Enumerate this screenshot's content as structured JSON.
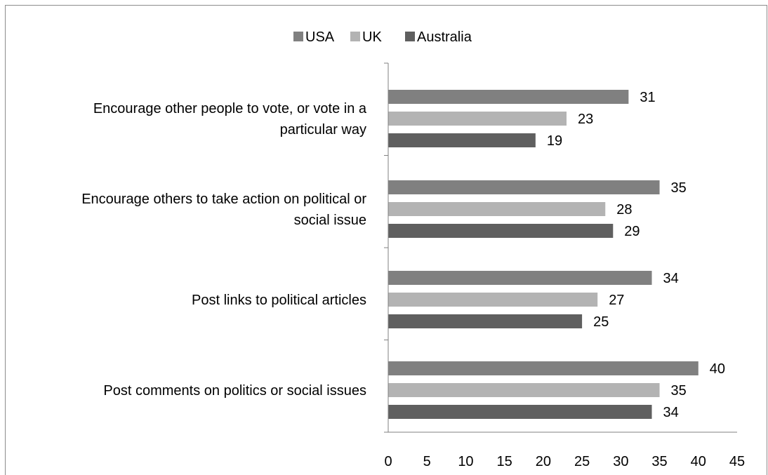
{
  "chart_data": {
    "type": "bar",
    "orientation": "horizontal",
    "categories": [
      [
        "Encourage other people to vote, or vote in a",
        "particular way"
      ],
      [
        "Encourage others to take action on political or",
        "social issue"
      ],
      [
        "Post links to political articles"
      ],
      [
        "Post comments on politics or social issues"
      ]
    ],
    "series": [
      {
        "name": "USA",
        "color": "#808080",
        "values": [
          31,
          35,
          34,
          40
        ]
      },
      {
        "name": "UK",
        "color": "#b3b3b3",
        "values": [
          23,
          28,
          27,
          35
        ]
      },
      {
        "name": "Australia",
        "color": "#5f5f5f",
        "values": [
          19,
          29,
          25,
          34
        ]
      }
    ],
    "xlim": [
      0,
      45
    ],
    "xticks": [
      0,
      5,
      10,
      15,
      20,
      25,
      30,
      35,
      40,
      45
    ],
    "legend_position": "top",
    "grid": false,
    "title": "",
    "xlabel": "",
    "ylabel": ""
  }
}
